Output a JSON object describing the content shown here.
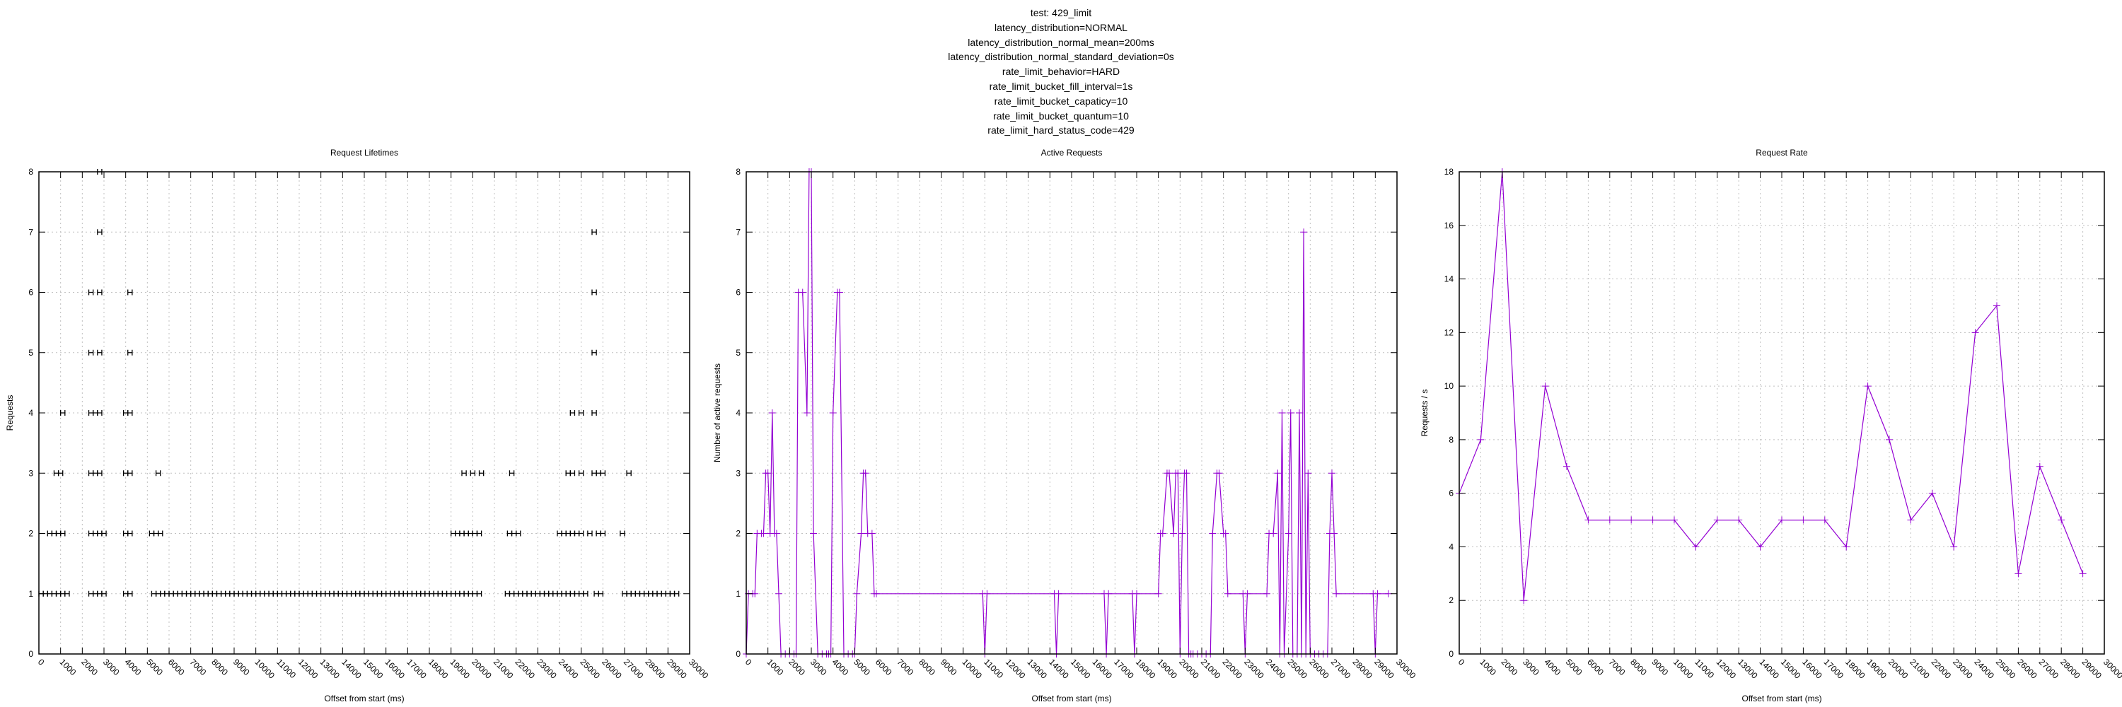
{
  "header": {
    "lines": [
      "test: 429_limit",
      "latency_distribution=NORMAL",
      "latency_distribution_normal_mean=200ms",
      "latency_distribution_normal_standard_deviation=0s",
      "rate_limit_behavior=HARD",
      "rate_limit_bucket_fill_interval=1s",
      "rate_limit_bucket_capaticy=10",
      "rate_limit_bucket_quantum=10",
      "rate_limit_hard_status_code=429"
    ]
  },
  "colors": {
    "series": "#9400d3",
    "lifetimes": "#000000",
    "grid": "#c0c0c0",
    "axis": "#000000"
  },
  "chart_data": [
    {
      "id": "lifetimes",
      "type": "scatter",
      "title": "Request Lifetimes",
      "xlabel": "Offset from start (ms)",
      "ylabel": "Requests",
      "xlim": [
        0,
        30000
      ],
      "ylim": [
        0,
        8
      ],
      "xticks": [
        0,
        1000,
        2000,
        3000,
        4000,
        5000,
        6000,
        7000,
        8000,
        9000,
        10000,
        11000,
        12000,
        13000,
        14000,
        15000,
        16000,
        17000,
        18000,
        19000,
        20000,
        21000,
        22000,
        23000,
        24000,
        25000,
        26000,
        27000,
        28000,
        29000,
        30000
      ],
      "yticks": [
        0,
        1,
        2,
        3,
        4,
        5,
        6,
        7,
        8
      ],
      "grid": true,
      "note": "each mark is a request lifetime interval (start→end, ~200ms) plotted at its concurrency level",
      "intervals": [
        {
          "y": 1,
          "starts": [
            0,
            200,
            400,
            600,
            800,
            1000,
            1200,
            2300,
            2500,
            2700,
            2900,
            3900,
            4100,
            5200,
            5400,
            5600,
            5800,
            6000,
            6200,
            6400,
            6600,
            6800,
            7000,
            7200,
            7400,
            7600,
            7800,
            8000,
            8200,
            8400,
            8600,
            8800,
            9000,
            9200,
            9400,
            9600,
            9800,
            10000,
            10200,
            10400,
            10600,
            10800,
            11000,
            11200,
            11400,
            11600,
            11800,
            12000,
            12200,
            12400,
            12600,
            12800,
            13000,
            13200,
            13400,
            13600,
            13800,
            14000,
            14200,
            14400,
            14600,
            14800,
            15000,
            15200,
            15400,
            15600,
            15800,
            16000,
            16200,
            16400,
            16600,
            16800,
            17000,
            17200,
            17400,
            17600,
            17800,
            18000,
            18200,
            18400,
            18600,
            18800,
            19000,
            19200,
            19400,
            19600,
            19800,
            20000,
            20200,
            21500,
            21700,
            21900,
            22100,
            22300,
            22500,
            22700,
            22900,
            23100,
            23300,
            23500,
            23700,
            23900,
            24100,
            24300,
            24500,
            24700,
            24900,
            25100,
            25600,
            25800,
            26900,
            27100,
            27300,
            27500,
            27700,
            27900,
            28100,
            28300,
            28500,
            28700,
            28900,
            29100,
            29300
          ]
        },
        {
          "y": 2,
          "starts": [
            400,
            600,
            800,
            1000,
            2300,
            2500,
            2700,
            2900,
            3900,
            4100,
            5100,
            5300,
            5500,
            19000,
            19200,
            19400,
            19600,
            19800,
            20000,
            20200,
            21600,
            21800,
            22000,
            23900,
            24100,
            24300,
            24500,
            24700,
            24900,
            25300,
            25700,
            25900,
            26800
          ]
        },
        {
          "y": 3,
          "starts": [
            700,
            900,
            2300,
            2500,
            2700,
            3900,
            4100,
            5400,
            19500,
            19900,
            20300,
            21700,
            24300,
            24500,
            24900,
            25500,
            25700,
            25900,
            27100
          ]
        },
        {
          "y": 4,
          "starts": [
            1000,
            2300,
            2500,
            2700,
            3900,
            4100,
            24500,
            24900,
            25500
          ]
        },
        {
          "y": 5,
          "starts": [
            2300,
            2700,
            4100,
            25500
          ]
        },
        {
          "y": 6,
          "starts": [
            2300,
            2700,
            4100,
            25500
          ]
        },
        {
          "y": 7,
          "starts": [
            2700,
            25500
          ]
        },
        {
          "y": 8,
          "starts": [
            2700
          ]
        }
      ]
    },
    {
      "id": "active",
      "type": "line",
      "title": "Active Requests",
      "xlabel": "Offset from start (ms)",
      "ylabel": "Number of active requests",
      "xlim": [
        0,
        30000
      ],
      "ylim": [
        0,
        8
      ],
      "xticks": [
        0,
        1000,
        2000,
        3000,
        4000,
        5000,
        6000,
        7000,
        8000,
        9000,
        10000,
        11000,
        12000,
        13000,
        14000,
        15000,
        16000,
        17000,
        18000,
        19000,
        20000,
        21000,
        22000,
        23000,
        24000,
        25000,
        26000,
        27000,
        28000,
        29000,
        30000
      ],
      "yticks": [
        0,
        1,
        2,
        3,
        4,
        5,
        6,
        7,
        8
      ],
      "grid": true,
      "x": [
        0,
        100,
        300,
        400,
        500,
        700,
        800,
        900,
        1000,
        1100,
        1200,
        1300,
        1400,
        1500,
        1600,
        1800,
        2000,
        2200,
        2300,
        2400,
        2600,
        2800,
        2900,
        3000,
        3100,
        3300,
        3500,
        3700,
        3800,
        3900,
        4000,
        4200,
        4300,
        4500,
        4700,
        4900,
        5000,
        5100,
        5300,
        5400,
        5500,
        5600,
        5800,
        5900,
        6000,
        10900,
        11000,
        11100,
        14200,
        14300,
        14400,
        16500,
        16600,
        16700,
        17800,
        17900,
        18000,
        19000,
        19100,
        19200,
        19400,
        19500,
        19700,
        19800,
        19900,
        20000,
        20100,
        20200,
        20300,
        20400,
        20500,
        20600,
        20800,
        21000,
        21200,
        21400,
        21500,
        21700,
        21800,
        22000,
        22100,
        22200,
        22900,
        23000,
        23100,
        24000,
        24100,
        24300,
        24500,
        24600,
        24700,
        24800,
        25000,
        25100,
        25200,
        25400,
        25500,
        25600,
        25700,
        25800,
        25900,
        26000,
        26200,
        26400,
        26600,
        26800,
        26900,
        27000,
        27100,
        27200,
        28900,
        29000,
        29100,
        29600
      ],
      "values": [
        0,
        1,
        1,
        1,
        2,
        2,
        2,
        3,
        3,
        2,
        4,
        2,
        2,
        1,
        0,
        0,
        0,
        0,
        0,
        6,
        6,
        4,
        8,
        8,
        2,
        0,
        0,
        0,
        0,
        0,
        4,
        6,
        6,
        0,
        0,
        0,
        0,
        1,
        2,
        3,
        3,
        2,
        2,
        1,
        1,
        1,
        0,
        1,
        1,
        0,
        1,
        1,
        0,
        1,
        1,
        0,
        1,
        1,
        2,
        2,
        3,
        3,
        2,
        3,
        3,
        0,
        2,
        3,
        3,
        0,
        0,
        0,
        0,
        0,
        0,
        0,
        2,
        3,
        3,
        2,
        2,
        1,
        1,
        0,
        1,
        1,
        2,
        2,
        3,
        0,
        4,
        0,
        2,
        4,
        0,
        0,
        4,
        0,
        7,
        0,
        3,
        0,
        0,
        0,
        0,
        0,
        2,
        3,
        2,
        1,
        1,
        0,
        1,
        1
      ]
    },
    {
      "id": "rate",
      "type": "line",
      "title": "Request Rate",
      "xlabel": "Offset from start (ms)",
      "ylabel": "Requests / s",
      "xlim": [
        0,
        30000
      ],
      "ylim": [
        0,
        18
      ],
      "xticks": [
        0,
        1000,
        2000,
        3000,
        4000,
        5000,
        6000,
        7000,
        8000,
        9000,
        10000,
        11000,
        12000,
        13000,
        14000,
        15000,
        16000,
        17000,
        18000,
        19000,
        20000,
        21000,
        22000,
        23000,
        24000,
        25000,
        26000,
        27000,
        28000,
        29000,
        30000
      ],
      "yticks": [
        0,
        2,
        4,
        6,
        8,
        10,
        12,
        14,
        16,
        18
      ],
      "grid": true,
      "x": [
        0,
        1000,
        2000,
        3000,
        4000,
        5000,
        6000,
        7000,
        8000,
        9000,
        10000,
        11000,
        12000,
        13000,
        14000,
        15000,
        16000,
        17000,
        18000,
        19000,
        20000,
        21000,
        22000,
        23000,
        24000,
        25000,
        26000,
        27000,
        28000,
        29000
      ],
      "values": [
        6,
        8,
        18,
        2,
        10,
        7,
        5,
        5,
        5,
        5,
        5,
        4,
        5,
        5,
        4,
        5,
        5,
        5,
        4,
        10,
        8,
        5,
        6,
        4,
        12,
        13,
        3,
        7,
        5,
        3
      ]
    }
  ]
}
